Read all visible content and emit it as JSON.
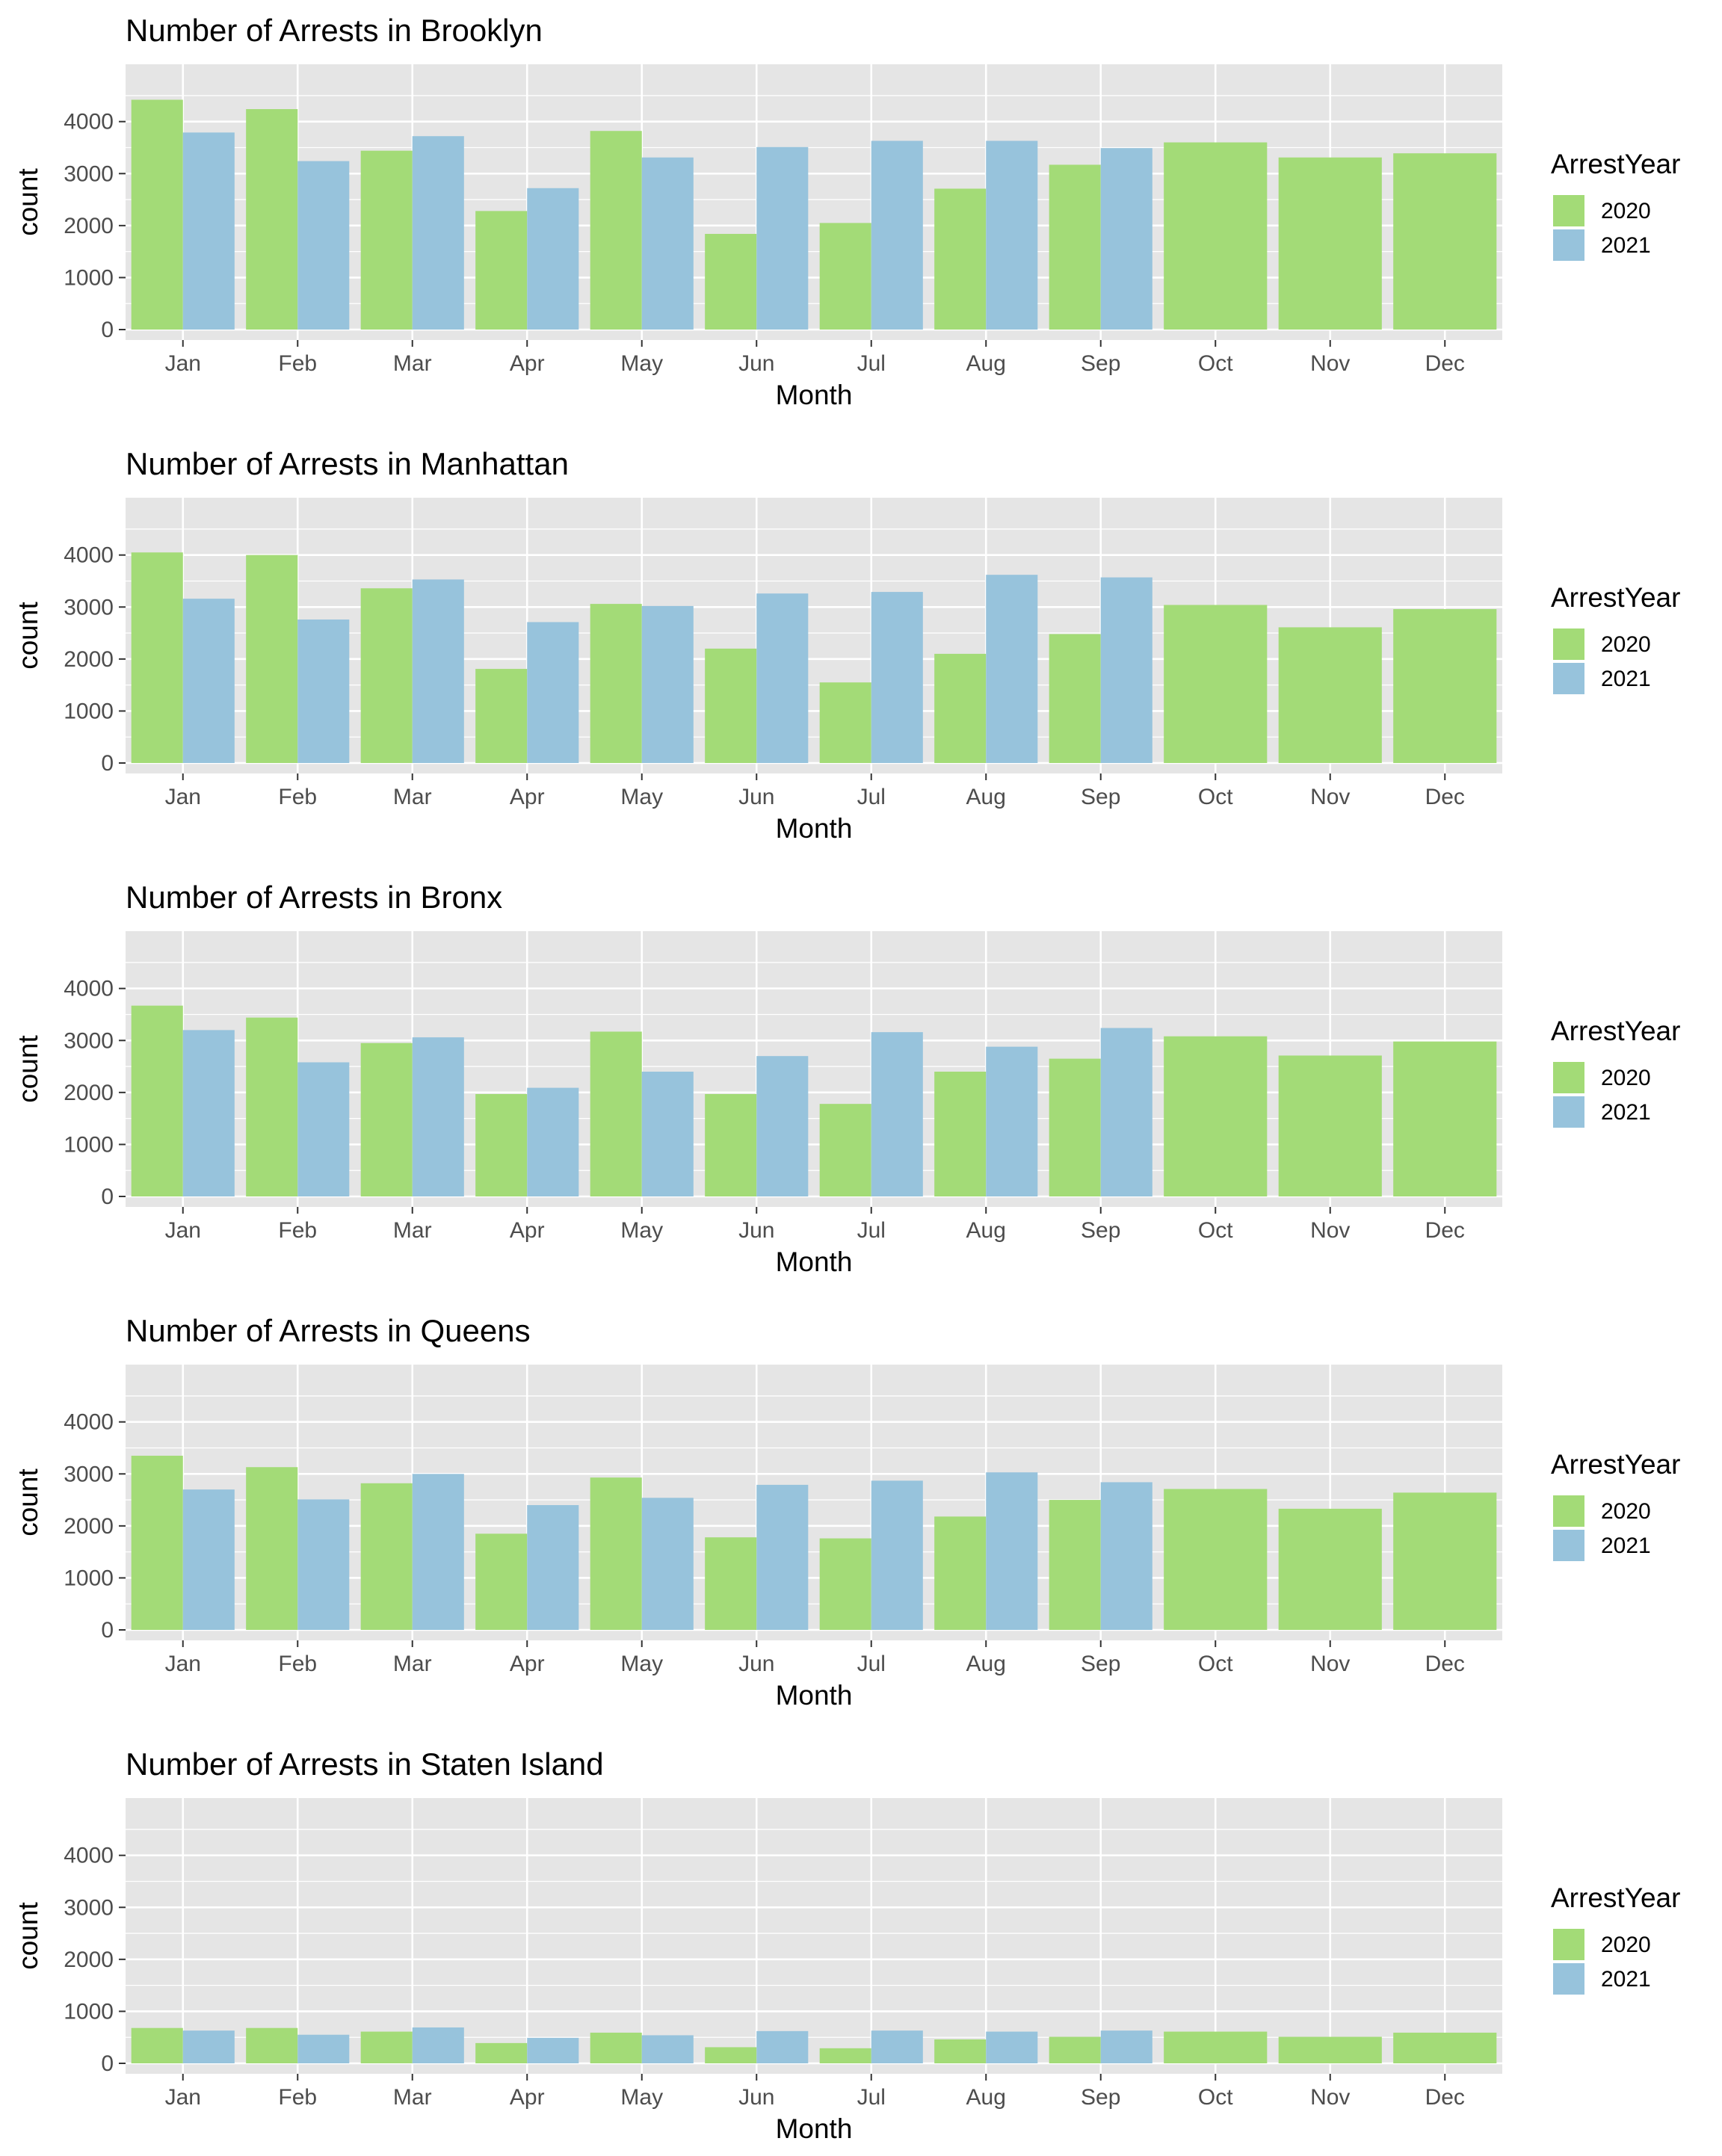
{
  "colors": {
    "panel_bg": "#e5e5e5",
    "grid": "#ffffff",
    "tick": "#4d4d4d",
    "series_2020": "#a3db77",
    "series_2021": "#97c3dc"
  },
  "chart_data": [
    {
      "type": "bar",
      "title": "Number of Arrests in Brooklyn",
      "xlabel": "Month",
      "ylabel": "count",
      "categories": [
        "Jan",
        "Feb",
        "Mar",
        "Apr",
        "May",
        "Jun",
        "Jul",
        "Aug",
        "Sep",
        "Oct",
        "Nov",
        "Dec"
      ],
      "yticks": [
        "0",
        "1000",
        "2000",
        "3000",
        "4000"
      ],
      "ylim": [
        0,
        4700
      ],
      "grid": true,
      "legend": {
        "title": "ArrestYear",
        "placement": "right",
        "labels": [
          "2020",
          "2021"
        ]
      },
      "series": [
        {
          "name": "2020",
          "color": "#a3db77",
          "values": [
            4420,
            4240,
            3440,
            2280,
            3820,
            1840,
            2050,
            2710,
            3170,
            3600,
            3310,
            3390
          ]
        },
        {
          "name": "2021",
          "color": "#97c3dc",
          "values": [
            3790,
            3240,
            3720,
            2720,
            3310,
            3510,
            3630,
            3630,
            3490,
            null,
            null,
            null
          ]
        }
      ]
    },
    {
      "type": "bar",
      "title": "Number of Arrests in Manhattan",
      "xlabel": "Month",
      "ylabel": "count",
      "categories": [
        "Jan",
        "Feb",
        "Mar",
        "Apr",
        "May",
        "Jun",
        "Jul",
        "Aug",
        "Sep",
        "Oct",
        "Nov",
        "Dec"
      ],
      "yticks": [
        "0",
        "1000",
        "2000",
        "3000",
        "4000"
      ],
      "ylim": [
        0,
        4700
      ],
      "grid": true,
      "legend": {
        "title": "ArrestYear",
        "placement": "right",
        "labels": [
          "2020",
          "2021"
        ]
      },
      "series": [
        {
          "name": "2020",
          "color": "#a3db77",
          "values": [
            4050,
            4000,
            3360,
            1810,
            3060,
            2200,
            1550,
            2100,
            2480,
            3040,
            2610,
            2960
          ]
        },
        {
          "name": "2021",
          "color": "#97c3dc",
          "values": [
            3160,
            2760,
            3530,
            2710,
            3020,
            3260,
            3290,
            3620,
            3570,
            null,
            null,
            null
          ]
        }
      ]
    },
    {
      "type": "bar",
      "title": "Number of Arrests in Bronx",
      "xlabel": "Month",
      "ylabel": "count",
      "categories": [
        "Jan",
        "Feb",
        "Mar",
        "Apr",
        "May",
        "Jun",
        "Jul",
        "Aug",
        "Sep",
        "Oct",
        "Nov",
        "Dec"
      ],
      "yticks": [
        "0",
        "1000",
        "2000",
        "3000",
        "4000"
      ],
      "ylim": [
        0,
        4700
      ],
      "grid": true,
      "legend": {
        "title": "ArrestYear",
        "placement": "right",
        "labels": [
          "2020",
          "2021"
        ]
      },
      "series": [
        {
          "name": "2020",
          "color": "#a3db77",
          "values": [
            3670,
            3440,
            2950,
            1970,
            3170,
            1970,
            1780,
            2400,
            2650,
            3080,
            2710,
            2980
          ]
        },
        {
          "name": "2021",
          "color": "#97c3dc",
          "values": [
            3200,
            2580,
            3060,
            2090,
            2400,
            2700,
            3160,
            2880,
            3240,
            null,
            null,
            null
          ]
        }
      ]
    },
    {
      "type": "bar",
      "title": "Number of Arrests in Queens",
      "xlabel": "Month",
      "ylabel": "count",
      "categories": [
        "Jan",
        "Feb",
        "Mar",
        "Apr",
        "May",
        "Jun",
        "Jul",
        "Aug",
        "Sep",
        "Oct",
        "Nov",
        "Dec"
      ],
      "yticks": [
        "0",
        "1000",
        "2000",
        "3000",
        "4000"
      ],
      "ylim": [
        0,
        4700
      ],
      "grid": true,
      "legend": {
        "title": "ArrestYear",
        "placement": "right",
        "labels": [
          "2020",
          "2021"
        ]
      },
      "series": [
        {
          "name": "2020",
          "color": "#a3db77",
          "values": [
            3350,
            3130,
            2820,
            1850,
            2930,
            1780,
            1760,
            2180,
            2500,
            2710,
            2330,
            2640
          ]
        },
        {
          "name": "2021",
          "color": "#97c3dc",
          "values": [
            2700,
            2510,
            3000,
            2400,
            2540,
            2790,
            2870,
            3030,
            2840,
            null,
            null,
            null
          ]
        }
      ]
    },
    {
      "type": "bar",
      "title": "Number of Arrests in Staten Island",
      "xlabel": "Month",
      "ylabel": "count",
      "categories": [
        "Jan",
        "Feb",
        "Mar",
        "Apr",
        "May",
        "Jun",
        "Jul",
        "Aug",
        "Sep",
        "Oct",
        "Nov",
        "Dec"
      ],
      "yticks": [
        "0",
        "1000",
        "2000",
        "3000",
        "4000"
      ],
      "ylim": [
        0,
        4700
      ],
      "grid": true,
      "legend": {
        "title": "ArrestYear",
        "placement": "right",
        "labels": [
          "2020",
          "2021"
        ]
      },
      "series": [
        {
          "name": "2020",
          "color": "#a3db77",
          "values": [
            680,
            680,
            610,
            390,
            590,
            310,
            290,
            460,
            510,
            610,
            510,
            590
          ]
        },
        {
          "name": "2021",
          "color": "#97c3dc",
          "values": [
            630,
            550,
            690,
            490,
            540,
            620,
            630,
            610,
            630,
            null,
            null,
            null
          ]
        }
      ]
    }
  ]
}
